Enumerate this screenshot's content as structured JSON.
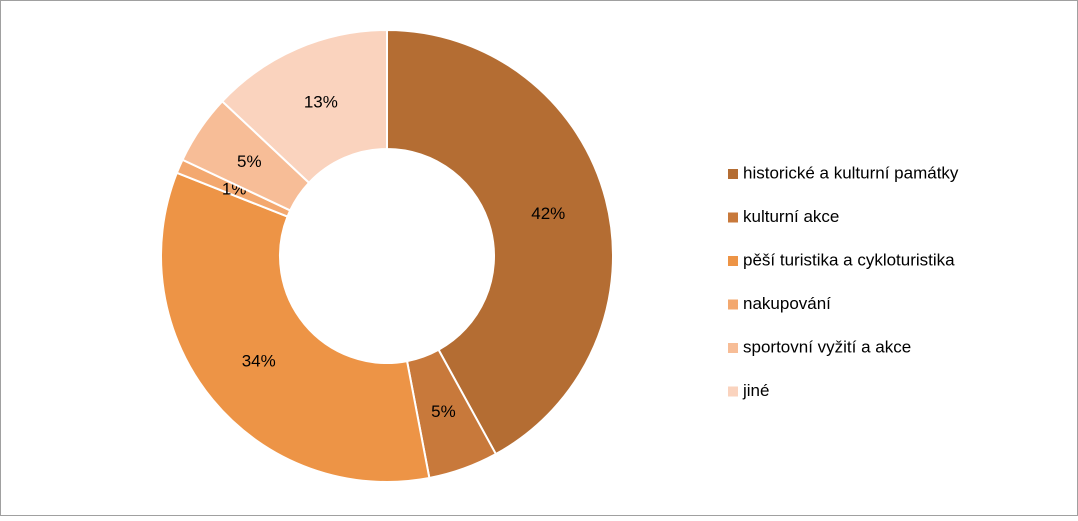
{
  "chart_data": {
    "type": "pie",
    "categories": [
      "historické a kulturní památky",
      "kulturní akce",
      "pěší turistika a cykloturistika",
      "nakupování",
      "sportovní vyžití a akce",
      "jiné"
    ],
    "values": [
      42,
      5,
      34,
      1,
      5,
      13
    ],
    "value_labels": [
      "42%",
      "5%",
      "34%",
      "1%",
      "5%",
      "13%"
    ],
    "colors": [
      "#b46d33",
      "#c8793b",
      "#ed9446",
      "#f3a86f",
      "#f7bd97",
      "#fad3be"
    ],
    "legend": "right"
  }
}
